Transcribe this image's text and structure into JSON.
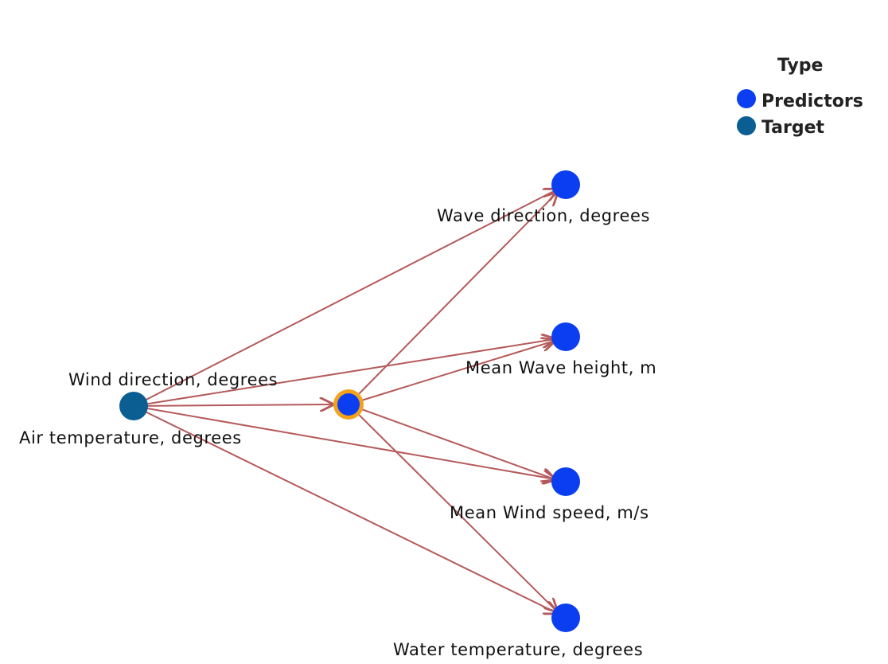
{
  "legend": {
    "title": "Type",
    "items": [
      {
        "label": "Predictors",
        "color": "#0a3ef0"
      },
      {
        "label": "Target",
        "color": "#0b5e92"
      }
    ]
  },
  "nodes": {
    "source": {
      "labels": [
        "Wind direction, degrees",
        "Air temperature, degrees"
      ],
      "type": "Target"
    },
    "hub": {
      "label": "",
      "type": "Predictors",
      "highlight": "#f3a21b"
    },
    "wave_direction": {
      "label": "Wave direction, degrees",
      "type": "Predictors"
    },
    "wave_height": {
      "label": "Mean Wave height, m",
      "type": "Predictors"
    },
    "wind_speed": {
      "label": "Mean Wind speed, m/s",
      "type": "Predictors"
    },
    "water_temperature": {
      "label": "Water temperature, degrees",
      "type": "Predictors"
    }
  },
  "edges": [
    {
      "from": "source",
      "to": "wave_direction"
    },
    {
      "from": "source",
      "to": "wave_height"
    },
    {
      "from": "source",
      "to": "hub"
    },
    {
      "from": "source",
      "to": "wind_speed"
    },
    {
      "from": "source",
      "to": "water_temperature"
    },
    {
      "from": "hub",
      "to": "wave_direction"
    },
    {
      "from": "hub",
      "to": "wave_height"
    },
    {
      "from": "hub",
      "to": "wind_speed"
    },
    {
      "from": "hub",
      "to": "water_temperature"
    }
  ],
  "colors": {
    "edge": "#b55a5a",
    "predictor": "#0a3ef0",
    "target": "#0b5e92"
  }
}
